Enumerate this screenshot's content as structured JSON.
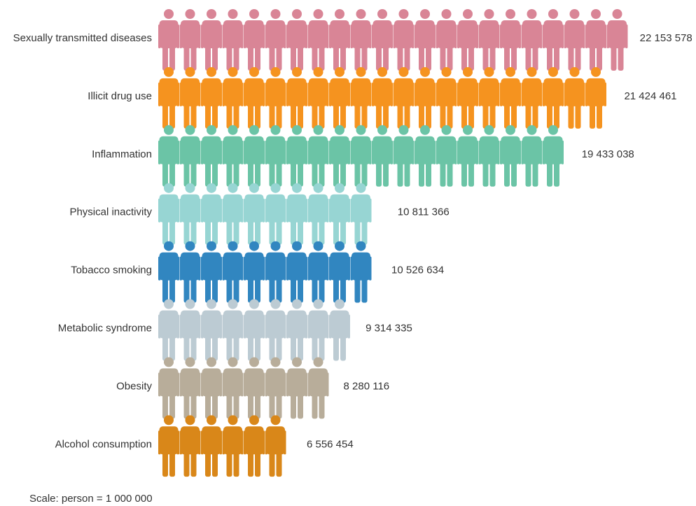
{
  "chart_data": {
    "type": "bar",
    "orientation": "horizontal",
    "style": "pictogram",
    "unit_icon": "person-icon",
    "categories": [
      "Sexually transmitted diseases",
      "Illicit drug use",
      "Inflammation",
      "Physical inactivity",
      "Tobacco smoking",
      "Metabolic syndrome",
      "Obesity",
      "Alcohol consumption"
    ],
    "values": [
      22153578,
      21424461,
      19433038,
      10811366,
      10526634,
      9314335,
      8280116,
      6556454
    ],
    "value_labels": [
      "22 153 578",
      "21 424 461",
      "19 433 038",
      "10 811 366",
      "10 526 634",
      "9 314 335",
      "8 280 116",
      "6 556 454"
    ],
    "colors": [
      "#d98596",
      "#f5931f",
      "#6bc4a6",
      "#97d5d3",
      "#3186c0",
      "#bccbd3",
      "#b8ad9a",
      "#d98719"
    ],
    "scale_per_icon": 1000000,
    "scale_note": "Scale: person = 1 000 000",
    "grid": false,
    "legend": "none"
  }
}
